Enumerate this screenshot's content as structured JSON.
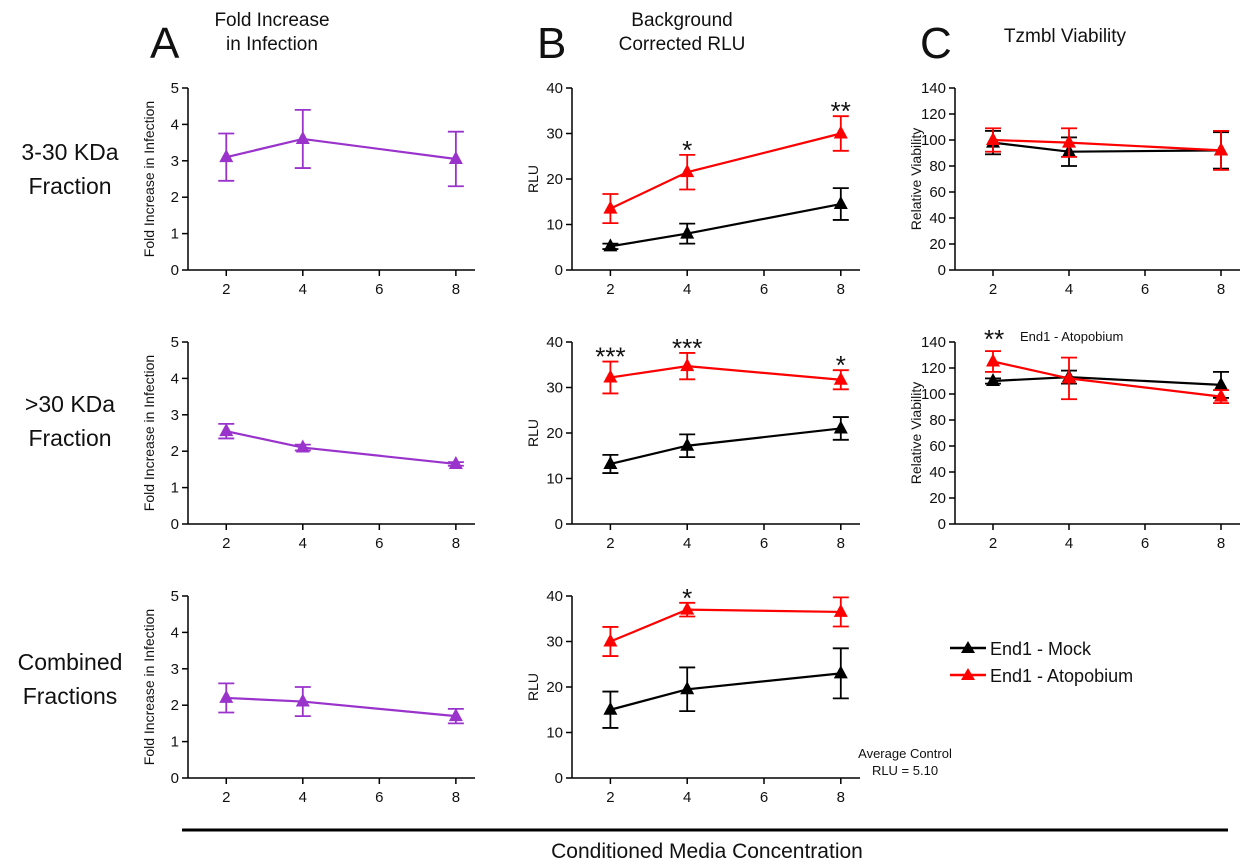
{
  "panels": {
    "A": {
      "letter": "A",
      "title_lines": [
        "Fold Increase",
        "in Infection"
      ]
    },
    "B": {
      "letter": "B",
      "title_lines": [
        "Background",
        "Corrected RLU"
      ]
    },
    "C": {
      "letter": "C",
      "title_lines": [
        "Tzmbl Viability"
      ]
    }
  },
  "rows": [
    {
      "label_lines": [
        "3-30 KDa",
        "Fraction"
      ]
    },
    {
      "label_lines": [
        ">30 KDa",
        "Fraction"
      ]
    },
    {
      "label_lines": [
        "Combined",
        "Fractions"
      ]
    }
  ],
  "legend": {
    "items": [
      {
        "label": "End1 - Mock",
        "color": "#000000"
      },
      {
        "label": "End1 - Atopobium",
        "color": "#ff0000"
      }
    ]
  },
  "note": {
    "lines": [
      "Average Control",
      "RLU = 5.10"
    ]
  },
  "annotation_C2": {
    "stars": "**",
    "text": "End1 - Atopobium"
  },
  "bottom_axis": {
    "label": "Conditioned Media Concentration"
  },
  "colors": {
    "purple": "#9933cc",
    "mock": "#000000",
    "atopobium": "#ff0000"
  },
  "chart_data": [
    {
      "id": "A1",
      "type": "line",
      "ylabel": "Fold Increase in Infection",
      "xlim": [
        1,
        8.5
      ],
      "ylim": [
        0,
        5
      ],
      "xticks": [
        2,
        4,
        6,
        8
      ],
      "yticks": [
        0,
        1,
        2,
        3,
        4,
        5
      ],
      "series": [
        {
          "color": "#9933cc",
          "x": [
            2,
            4,
            8
          ],
          "values": [
            3.1,
            3.6,
            3.05
          ],
          "err": [
            0.65,
            0.8,
            0.75
          ]
        }
      ],
      "stars": []
    },
    {
      "id": "A2",
      "type": "line",
      "ylabel": "Fold Increase in Infection",
      "xlim": [
        1,
        8.5
      ],
      "ylim": [
        0,
        5
      ],
      "xticks": [
        2,
        4,
        6,
        8
      ],
      "yticks": [
        0,
        1,
        2,
        3,
        4,
        5
      ],
      "series": [
        {
          "color": "#9933cc",
          "x": [
            2,
            4,
            8
          ],
          "values": [
            2.55,
            2.1,
            1.65
          ],
          "err": [
            0.2,
            0.08,
            0.05
          ]
        }
      ],
      "stars": []
    },
    {
      "id": "A3",
      "type": "line",
      "ylabel": "Fold Increase in Infection",
      "xlim": [
        1,
        8.5
      ],
      "ylim": [
        0,
        5
      ],
      "xticks": [
        2,
        4,
        6,
        8
      ],
      "yticks": [
        0,
        1,
        2,
        3,
        4,
        5
      ],
      "series": [
        {
          "color": "#9933cc",
          "x": [
            2,
            4,
            8
          ],
          "values": [
            2.2,
            2.1,
            1.7
          ],
          "err": [
            0.4,
            0.4,
            0.2
          ]
        }
      ],
      "stars": []
    },
    {
      "id": "B1",
      "type": "line",
      "ylabel": "RLU",
      "xlim": [
        1,
        8.5
      ],
      "ylim": [
        0,
        40
      ],
      "xticks": [
        2,
        4,
        6,
        8
      ],
      "yticks": [
        0,
        10,
        20,
        30,
        40
      ],
      "series": [
        {
          "name": "End1 - Mock",
          "color": "#000000",
          "x": [
            2,
            4,
            8
          ],
          "values": [
            5.2,
            8.0,
            14.5
          ],
          "err": [
            0.6,
            2.2,
            3.5
          ]
        },
        {
          "name": "End1 - Atopobium",
          "color": "#ff0000",
          "x": [
            2,
            4,
            8
          ],
          "values": [
            13.5,
            21.5,
            30.0
          ],
          "err": [
            3.2,
            3.8,
            3.8
          ]
        }
      ],
      "stars": [
        {
          "x": 4,
          "text": "*"
        },
        {
          "x": 8,
          "text": "**"
        }
      ]
    },
    {
      "id": "B2",
      "type": "line",
      "ylabel": "RLU",
      "xlim": [
        1,
        8.5
      ],
      "ylim": [
        0,
        40
      ],
      "xticks": [
        2,
        4,
        6,
        8
      ],
      "yticks": [
        0,
        10,
        20,
        30,
        40
      ],
      "series": [
        {
          "name": "End1 - Mock",
          "color": "#000000",
          "x": [
            2,
            4,
            8
          ],
          "values": [
            13.2,
            17.2,
            21.0
          ],
          "err": [
            2.0,
            2.5,
            2.5
          ]
        },
        {
          "name": "End1 - Atopobium",
          "color": "#ff0000",
          "x": [
            2,
            4,
            8
          ],
          "values": [
            32.2,
            34.7,
            31.7
          ],
          "err": [
            3.5,
            2.9,
            2.1
          ]
        }
      ],
      "stars": [
        {
          "x": 2,
          "text": "***"
        },
        {
          "x": 4,
          "text": "***"
        },
        {
          "x": 8,
          "text": "*"
        }
      ]
    },
    {
      "id": "B3",
      "type": "line",
      "ylabel": "RLU",
      "xlim": [
        1,
        8.5
      ],
      "ylim": [
        0,
        40
      ],
      "xticks": [
        2,
        4,
        6,
        8
      ],
      "yticks": [
        0,
        10,
        20,
        30,
        40
      ],
      "series": [
        {
          "name": "End1 - Mock",
          "color": "#000000",
          "x": [
            2,
            4,
            8
          ],
          "values": [
            15.0,
            19.5,
            23.0
          ],
          "err": [
            4.0,
            4.8,
            5.5
          ]
        },
        {
          "name": "End1 - Atopobium",
          "color": "#ff0000",
          "x": [
            2,
            4,
            8
          ],
          "values": [
            30.0,
            37.0,
            36.5
          ],
          "err": [
            3.2,
            1.5,
            3.2
          ]
        }
      ],
      "stars": [
        {
          "x": 4,
          "text": "*"
        }
      ]
    },
    {
      "id": "C1",
      "type": "line",
      "ylabel": "Relative Viability",
      "xlim": [
        1,
        8.5
      ],
      "ylim": [
        0,
        140
      ],
      "xticks": [
        2,
        4,
        6,
        8
      ],
      "yticks": [
        0,
        20,
        40,
        60,
        80,
        100,
        120,
        140
      ],
      "series": [
        {
          "name": "End1 - Mock",
          "color": "#000000",
          "x": [
            2,
            4,
            8
          ],
          "values": [
            98,
            91,
            92
          ],
          "err": [
            9,
            11,
            14
          ]
        },
        {
          "name": "End1 - Atopobium",
          "color": "#ff0000",
          "x": [
            2,
            4,
            8
          ],
          "values": [
            100,
            98,
            92
          ],
          "err": [
            9,
            11,
            15
          ]
        }
      ],
      "stars": []
    },
    {
      "id": "C2",
      "type": "line",
      "ylabel": "Relative Viability",
      "xlim": [
        1,
        8.5
      ],
      "ylim": [
        0,
        140
      ],
      "xticks": [
        2,
        4,
        6,
        8
      ],
      "yticks": [
        0,
        20,
        40,
        60,
        80,
        100,
        120,
        140
      ],
      "series": [
        {
          "name": "End1 - Mock",
          "color": "#000000",
          "x": [
            2,
            4,
            8
          ],
          "values": [
            110,
            113,
            107
          ],
          "err": [
            2,
            5,
            10
          ]
        },
        {
          "name": "End1 - Atopobium",
          "color": "#ff0000",
          "x": [
            2,
            4,
            8
          ],
          "values": [
            125,
            112,
            98
          ],
          "err": [
            8,
            16,
            5
          ]
        }
      ],
      "stars": []
    }
  ]
}
